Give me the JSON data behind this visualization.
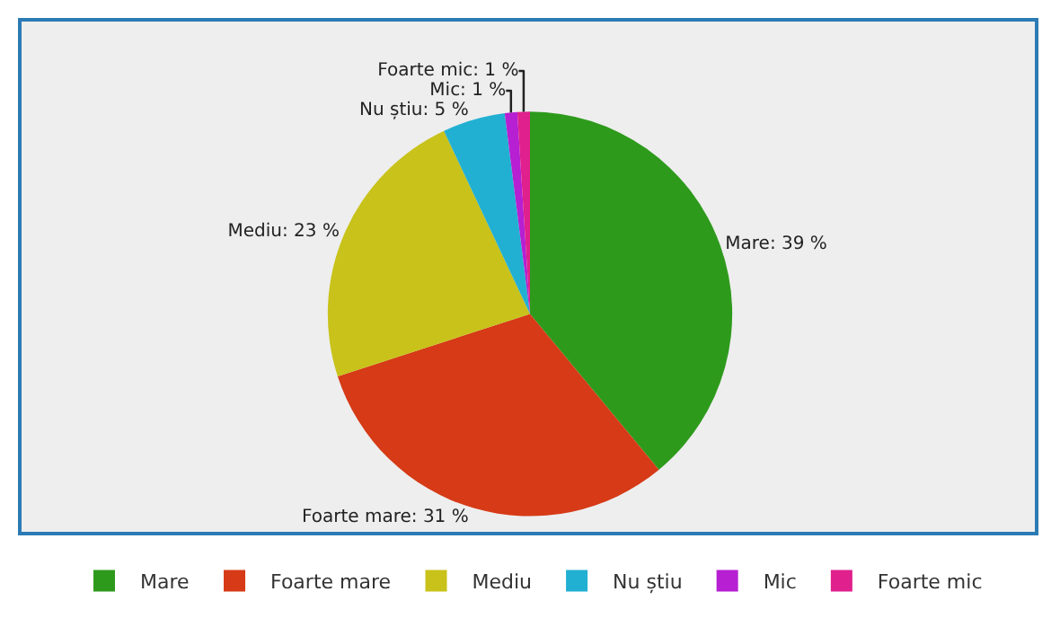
{
  "chart_data": {
    "type": "pie",
    "categories": [
      "Mare",
      "Foarte mare",
      "Mediu",
      "Nu știu",
      "Mic",
      "Foarte mic"
    ],
    "values": [
      39,
      31,
      23,
      5,
      1,
      1
    ],
    "colors": [
      "#2e9a1c",
      "#d63a16",
      "#c8c21a",
      "#22b0d2",
      "#b61fd2",
      "#e0208c"
    ],
    "value_labels": [
      "Mare: 39 %",
      "Foarte mare: 31 %",
      "Mediu: 23 %",
      "Nu știu: 5 %",
      "Mic: 1 %",
      "Foarte mic: 1 %"
    ],
    "legend": "bottom"
  }
}
